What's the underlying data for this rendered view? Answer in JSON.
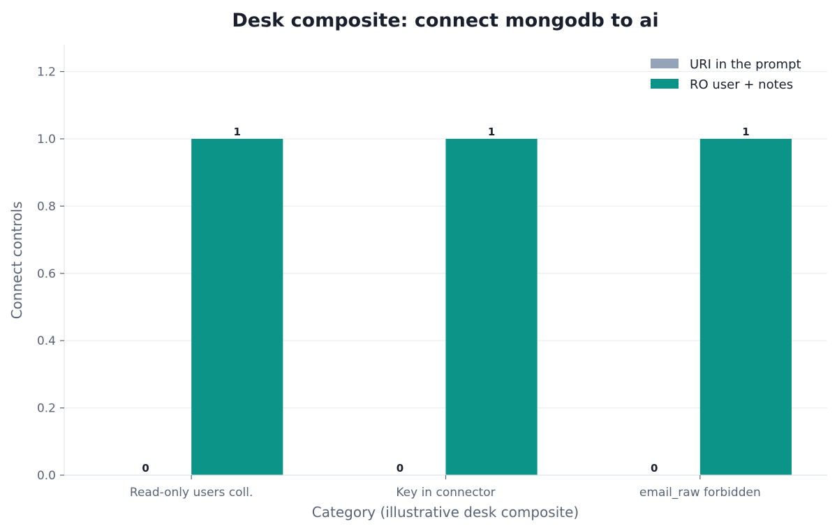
{
  "chart_data": {
    "type": "bar",
    "title": "Desk composite: connect mongodb to ai",
    "xlabel": "Category (illustrative desk composite)",
    "ylabel": "Connect controls",
    "categories": [
      "Read-only users coll.",
      "Key in connector",
      "email_raw forbidden"
    ],
    "series": [
      {
        "name": "URI in the prompt",
        "values": [
          0,
          0,
          0
        ],
        "color": "#94a3b8"
      },
      {
        "name": "RO user + notes",
        "values": [
          1,
          1,
          1
        ],
        "color": "#0d9488"
      }
    ],
    "ylim": [
      0,
      1.28
    ],
    "yticks": [
      "0.0",
      "0.2",
      "0.4",
      "0.6",
      "0.8",
      "1.0",
      "1.2"
    ],
    "grid": true,
    "legend": "top-right"
  }
}
